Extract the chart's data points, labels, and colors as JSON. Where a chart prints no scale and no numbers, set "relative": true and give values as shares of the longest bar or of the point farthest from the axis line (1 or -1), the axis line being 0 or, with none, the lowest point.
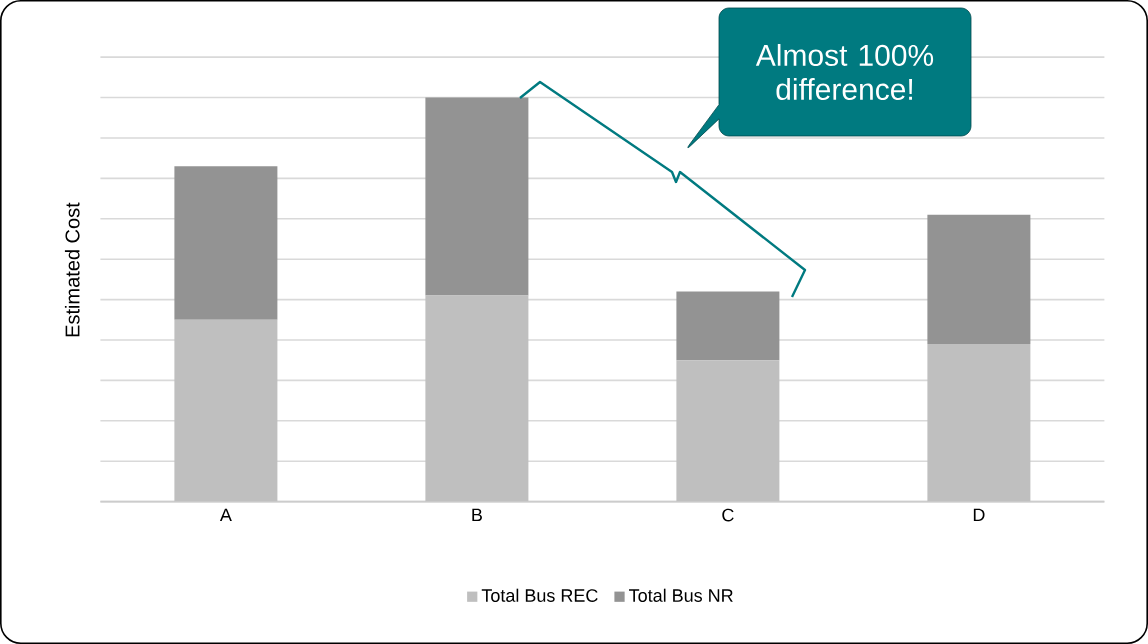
{
  "chart_data": {
    "type": "bar",
    "stacked": true,
    "relative": true,
    "ylabel": "Estimated Cost",
    "categories": [
      "A",
      "B",
      "C",
      "D"
    ],
    "series": [
      {
        "name": "Total Bus REC",
        "color": "#bfbfbf",
        "values": [
          0.45,
          0.51,
          0.35,
          0.39
        ]
      },
      {
        "name": "Total Bus NR",
        "color": "#939393",
        "values": [
          0.38,
          0.49,
          0.17,
          0.32
        ]
      }
    ],
    "annotations": [
      "Almost 100% difference!"
    ],
    "grid": "y",
    "legend": "bottom"
  }
}
